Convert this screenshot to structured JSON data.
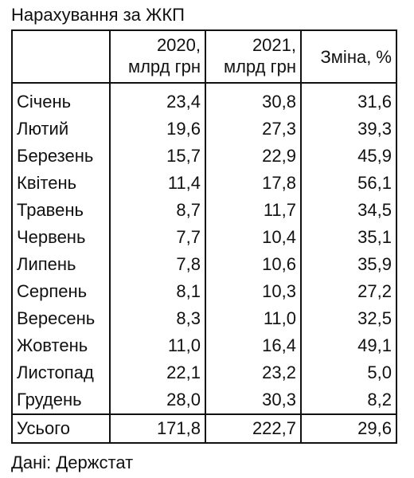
{
  "title": "Нарахування за ЖКП",
  "columns": [
    {
      "line1": "",
      "line2": ""
    },
    {
      "line1": "2020,",
      "line2": "млрд грн"
    },
    {
      "line1": "2021,",
      "line2": "млрд грн"
    },
    {
      "line1": "Зміна, %",
      "line2": ""
    }
  ],
  "rows": [
    {
      "month": "Січень",
      "y2020": "23,4",
      "y2021": "30,8",
      "change": "31,6"
    },
    {
      "month": "Лютий",
      "y2020": "19,6",
      "y2021": "27,3",
      "change": "39,3"
    },
    {
      "month": "Березень",
      "y2020": "15,7",
      "y2021": "22,9",
      "change": "45,9"
    },
    {
      "month": "Квітень",
      "y2020": "11,4",
      "y2021": "17,8",
      "change": "56,1"
    },
    {
      "month": "Травень",
      "y2020": "8,7",
      "y2021": "11,7",
      "change": "34,5"
    },
    {
      "month": "Червень",
      "y2020": "7,7",
      "y2021": "10,4",
      "change": "35,1"
    },
    {
      "month": "Липень",
      "y2020": "7,8",
      "y2021": "10,6",
      "change": "35,9"
    },
    {
      "month": "Серпень",
      "y2020": "8,1",
      "y2021": "10,3",
      "change": "27,2"
    },
    {
      "month": "Вересень",
      "y2020": "8,3",
      "y2021": "11,0",
      "change": "32,5"
    },
    {
      "month": "Жовтень",
      "y2020": "11,0",
      "y2021": "16,4",
      "change": "49,1"
    },
    {
      "month": "Листопад",
      "y2020": "22,1",
      "y2021": "23,2",
      "change": "5,0"
    },
    {
      "month": "Грудень",
      "y2020": "28,0",
      "y2021": "30,3",
      "change": "8,2"
    }
  ],
  "total": {
    "month": "Усього",
    "y2020": "171,8",
    "y2021": "222,7",
    "change": "29,6"
  },
  "source": "Дані: Держстат"
}
